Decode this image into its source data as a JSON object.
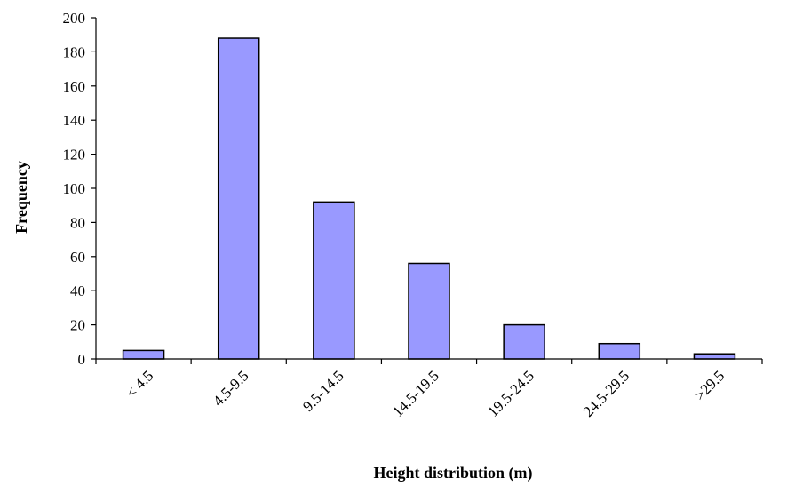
{
  "chart_data": {
    "type": "bar",
    "categories": [
      "< 4.5",
      "4.5-9.5",
      "9.5-14.5",
      "14.5-19.5",
      "19.5-24.5",
      "24.5-29.5",
      ">29.5"
    ],
    "values": [
      5,
      188,
      92,
      56,
      20,
      9,
      3
    ],
    "xlabel": "Height distribution (m)",
    "ylabel": "Frequency",
    "ylim": [
      0,
      200
    ],
    "yticks": [
      0,
      20,
      40,
      60,
      80,
      100,
      120,
      140,
      160,
      180,
      200
    ],
    "grid": false,
    "legend": "none",
    "colors": {
      "bar_fill": "#9999ff",
      "bar_stroke": "#000000",
      "axis": "#000000"
    }
  }
}
